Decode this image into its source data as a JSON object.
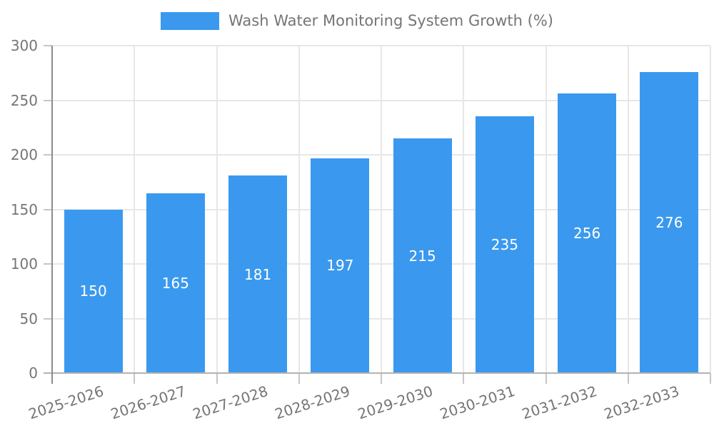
{
  "chart_data": {
    "type": "bar",
    "title": "Wash Water Monitoring System Growth (%)",
    "legend": {
      "position": "top-center",
      "entries": [
        {
          "label": "Wash Water Monitoring System Growth (%)",
          "color": "#3a99ee"
        }
      ]
    },
    "categories": [
      "2025-2026",
      "2026-2027",
      "2027-2028",
      "2028-2029",
      "2029-2030",
      "2030-2031",
      "2031-2032",
      "2032-2033"
    ],
    "series": [
      {
        "name": "Wash Water Monitoring System Growth (%)",
        "values": [
          150,
          165,
          181,
          197,
          215,
          235,
          256,
          276
        ]
      }
    ],
    "xlabel": "",
    "ylabel": "",
    "ylim": [
      0,
      300
    ],
    "yticks": [
      0,
      50,
      100,
      150,
      200,
      250,
      300
    ],
    "grid": true,
    "x_tick_rotation_deg": -18,
    "bar_value_labels_shown": true,
    "colors": {
      "bar": "#3a99ee",
      "bar_label": "#ffffff",
      "tick_label": "#757575",
      "legend_text": "#757575",
      "gridline": "#e7e7e7",
      "axis_line": "#8c8c8c",
      "baseline": "#b3b3b3",
      "tick_mark": "#c6c6c6",
      "background": "#ffffff"
    }
  }
}
